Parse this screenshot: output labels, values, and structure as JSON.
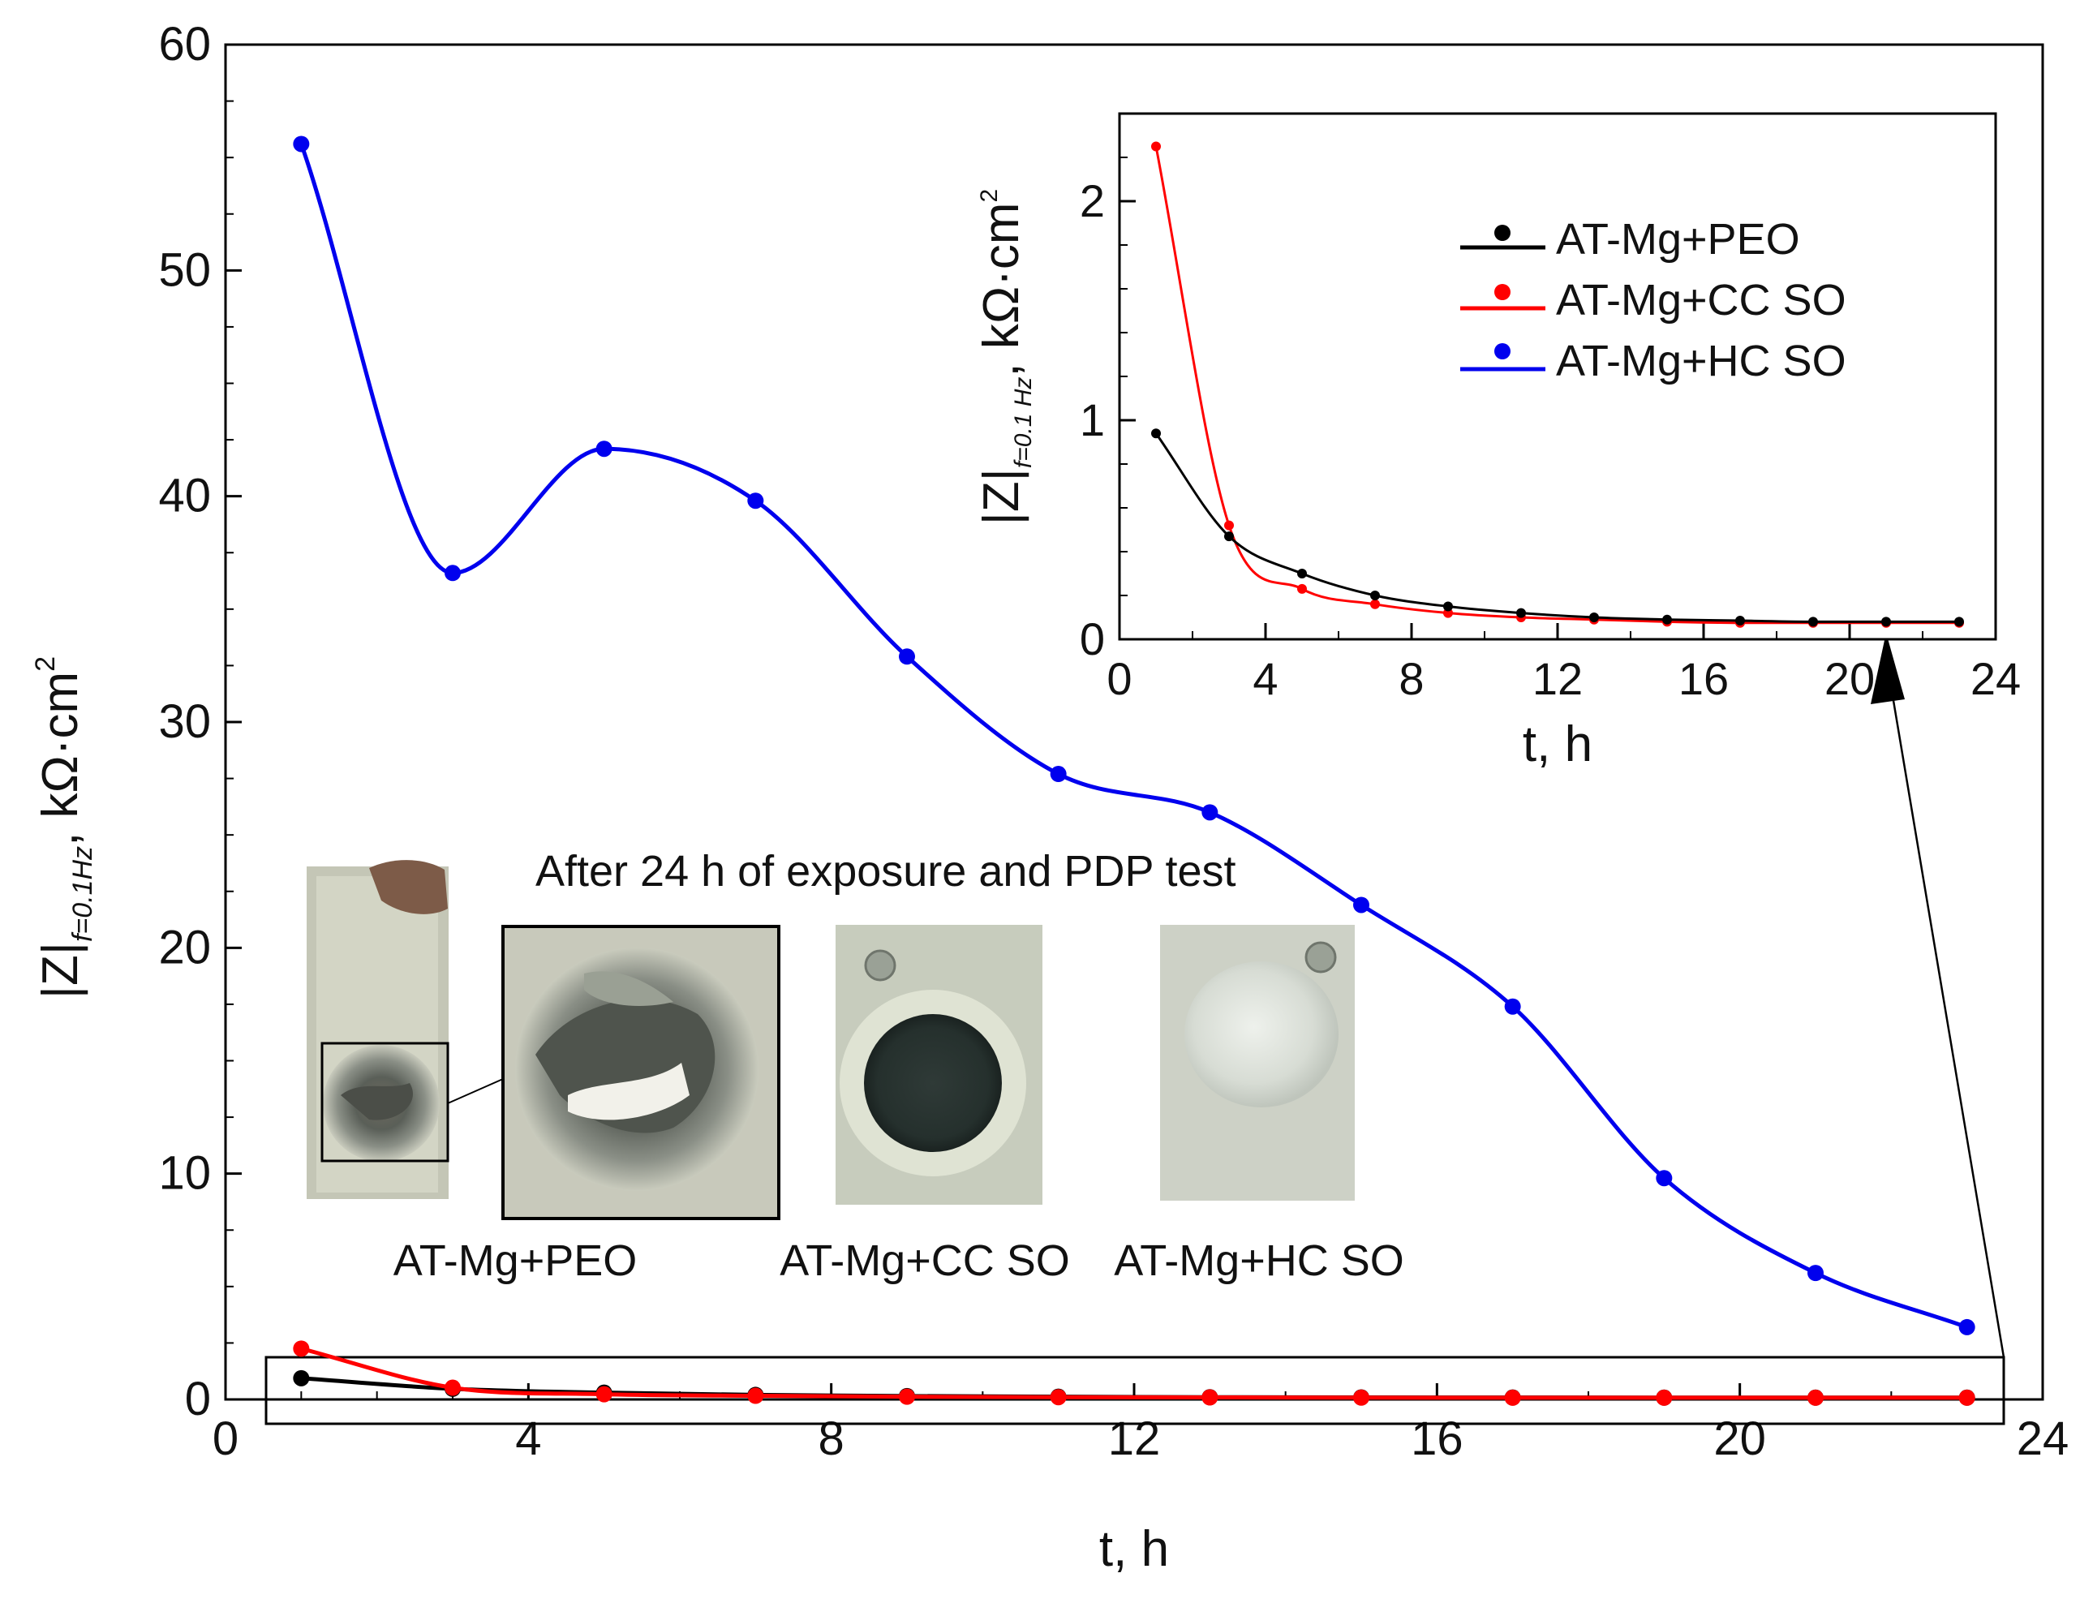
{
  "chart_data": [
    {
      "id": "main",
      "type": "line",
      "title": "",
      "xlabel": "t, h",
      "ylabel": "|Z|f=0.1Hz, kΩ·cm2",
      "ylabel_parts": {
        "main": "|Z|",
        "sub": "f=0.1Hz",
        "unit": ", kΩ·cm",
        "sup": "2"
      },
      "xlim": [
        0,
        24
      ],
      "ylim": [
        0,
        60
      ],
      "xticks": [
        0,
        4,
        8,
        12,
        16,
        20,
        24
      ],
      "yticks": [
        0,
        10,
        20,
        30,
        40,
        50,
        60
      ],
      "x": [
        1,
        3,
        5,
        7,
        9,
        11,
        13,
        15,
        17,
        19,
        21,
        23
      ],
      "series": [
        {
          "name": "AT-Mg+PEO",
          "color": "#000000",
          "values": [
            0.94,
            0.47,
            0.3,
            0.2,
            0.15,
            0.12,
            0.1,
            0.09,
            0.085,
            0.08,
            0.08,
            0.08
          ]
        },
        {
          "name": "AT-Mg+CC SO",
          "color": "#ff0000",
          "values": [
            2.25,
            0.52,
            0.23,
            0.16,
            0.12,
            0.1,
            0.09,
            0.08,
            0.075,
            0.075,
            0.075,
            0.075
          ]
        },
        {
          "name": "AT-Mg+HC SO",
          "color": "#0000ee",
          "values": [
            55.6,
            36.6,
            42.1,
            39.8,
            32.9,
            27.7,
            26.0,
            21.9,
            17.4,
            9.8,
            5.6,
            3.2
          ]
        }
      ],
      "annotations": {
        "photo_caption": "After 24 h of exposure and PDP test",
        "sample_labels": [
          "AT-Mg+PEO",
          "AT-Mg+CC SO",
          "AT-Mg+HC SO"
        ]
      }
    },
    {
      "id": "inset",
      "type": "line",
      "xlabel": "t, h",
      "ylabel": "|Z|f=0.1 Hz, kΩ·cm2",
      "ylabel_parts": {
        "main": "|Z|",
        "sub": "f=0.1 Hz",
        "unit": ", kΩ·cm",
        "sup": "2"
      },
      "xlim": [
        0,
        24
      ],
      "ylim": [
        0,
        2.4
      ],
      "xticks": [
        0,
        4,
        8,
        12,
        16,
        20,
        24
      ],
      "yticks": [
        0,
        1,
        2
      ],
      "legend_position": "top-right",
      "x": [
        1,
        3,
        5,
        7,
        9,
        11,
        13,
        15,
        17,
        19,
        21,
        23
      ],
      "series": [
        {
          "name": "AT-Mg+PEO",
          "color": "#000000",
          "values": [
            0.94,
            0.47,
            0.3,
            0.2,
            0.15,
            0.12,
            0.1,
            0.09,
            0.085,
            0.08,
            0.08,
            0.08
          ]
        },
        {
          "name": "AT-Mg+CC SO",
          "color": "#ff0000",
          "values": [
            2.25,
            0.52,
            0.23,
            0.16,
            0.12,
            0.1,
            0.09,
            0.08,
            0.075,
            0.075,
            0.075,
            0.075
          ]
        }
      ],
      "legend": [
        "AT-Mg+PEO",
        "AT-Mg+CC SO",
        "AT-Mg+HC SO"
      ]
    }
  ],
  "colors": {
    "peo": "#000000",
    "cc": "#ff0000",
    "hc": "#0000ee"
  },
  "icons": [
    "sample-photo-peo",
    "sample-photo-peo-zoom",
    "sample-photo-cc",
    "sample-photo-hc"
  ]
}
